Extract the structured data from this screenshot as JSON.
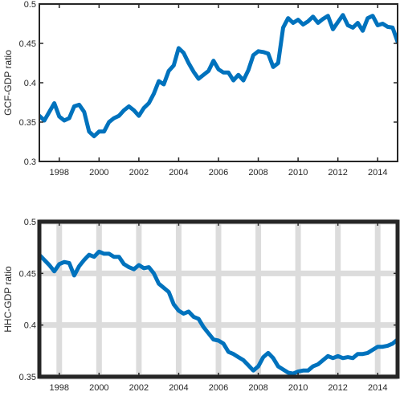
{
  "chart_data": [
    {
      "type": "line",
      "title": "",
      "xlabel": "",
      "ylabel": "GCF-GDP ratio",
      "xlim": [
        1997,
        2015
      ],
      "ylim": [
        0.3,
        0.5
      ],
      "grid": false,
      "yticks": [
        0.3,
        0.35,
        0.4,
        0.45,
        0.5
      ],
      "ytick_labels": [
        "0.3",
        "0.35",
        "0.4",
        "0.45",
        "0.5"
      ],
      "xticks": [
        1998,
        2000,
        2002,
        2004,
        2006,
        2008,
        2010,
        2012,
        2014
      ],
      "xtick_labels": [
        "1998",
        "2000",
        "2002",
        "2004",
        "2006",
        "2008",
        "2010",
        "2012",
        "2014"
      ],
      "color": "#0072BD",
      "series": [
        {
          "x": [
            1997.0,
            1997.25,
            1997.5,
            1997.75,
            1998.0,
            1998.25,
            1998.5,
            1998.75,
            1999.0,
            1999.25,
            1999.5,
            1999.75,
            2000.0,
            2000.25,
            2000.5,
            2000.75,
            2001.0,
            2001.25,
            2001.5,
            2001.75,
            2002.0,
            2002.25,
            2002.5,
            2002.75,
            2003.0,
            2003.25,
            2003.5,
            2003.75,
            2004.0,
            2004.25,
            2004.5,
            2004.75,
            2005.0,
            2005.25,
            2005.5,
            2005.75,
            2006.0,
            2006.25,
            2006.5,
            2006.75,
            2007.0,
            2007.25,
            2007.5,
            2007.75,
            2008.0,
            2008.25,
            2008.5,
            2008.75,
            2009.0,
            2009.25,
            2009.5,
            2009.75,
            2010.0,
            2010.25,
            2010.5,
            2010.75,
            2011.0,
            2011.25,
            2011.5,
            2011.75,
            2012.0,
            2012.25,
            2012.5,
            2012.75,
            2013.0,
            2013.25,
            2013.5,
            2013.75,
            2014.0,
            2014.25,
            2014.5,
            2014.75,
            2015.0
          ],
          "values": [
            0.358,
            0.352,
            0.363,
            0.374,
            0.357,
            0.352,
            0.355,
            0.37,
            0.372,
            0.363,
            0.338,
            0.332,
            0.338,
            0.338,
            0.35,
            0.355,
            0.358,
            0.365,
            0.37,
            0.365,
            0.358,
            0.368,
            0.374,
            0.386,
            0.402,
            0.398,
            0.415,
            0.422,
            0.444,
            0.438,
            0.425,
            0.414,
            0.405,
            0.41,
            0.415,
            0.428,
            0.417,
            0.413,
            0.413,
            0.403,
            0.41,
            0.403,
            0.416,
            0.435,
            0.44,
            0.439,
            0.437,
            0.42,
            0.425,
            0.47,
            0.482,
            0.476,
            0.48,
            0.474,
            0.478,
            0.484,
            0.476,
            0.481,
            0.485,
            0.468,
            0.477,
            0.486,
            0.473,
            0.47,
            0.476,
            0.466,
            0.482,
            0.485,
            0.473,
            0.475,
            0.471,
            0.47,
            0.452
          ]
        }
      ]
    },
    {
      "type": "line",
      "title": "",
      "xlabel": "",
      "ylabel": "HHC-GDP ratio",
      "xlim": [
        1997,
        2015
      ],
      "ylim": [
        0.35,
        0.5
      ],
      "grid": true,
      "yticks": [
        0.35,
        0.4,
        0.45,
        0.5
      ],
      "ytick_labels": [
        "0.35",
        "0.4",
        "0.45",
        "0.5"
      ],
      "xticks": [
        1998,
        2000,
        2002,
        2004,
        2006,
        2008,
        2010,
        2012,
        2014
      ],
      "xtick_labels": [
        "1998",
        "2000",
        "2002",
        "2004",
        "2006",
        "2008",
        "2010",
        "2012",
        "2014"
      ],
      "color": "#0072BD",
      "series": [
        {
          "x": [
            1997.0,
            1997.25,
            1997.5,
            1997.75,
            1998.0,
            1998.25,
            1998.5,
            1998.75,
            1999.0,
            1999.25,
            1999.5,
            1999.75,
            2000.0,
            2000.25,
            2000.5,
            2000.75,
            2001.0,
            2001.25,
            2001.5,
            2001.75,
            2002.0,
            2002.25,
            2002.5,
            2002.75,
            2003.0,
            2003.25,
            2003.5,
            2003.75,
            2004.0,
            2004.25,
            2004.5,
            2004.75,
            2005.0,
            2005.25,
            2005.5,
            2005.75,
            2006.0,
            2006.25,
            2006.5,
            2006.75,
            2007.0,
            2007.25,
            2007.5,
            2007.75,
            2008.0,
            2008.25,
            2008.5,
            2008.75,
            2009.0,
            2009.25,
            2009.5,
            2009.75,
            2010.0,
            2010.25,
            2010.5,
            2010.75,
            2011.0,
            2011.25,
            2011.5,
            2011.75,
            2012.0,
            2012.25,
            2012.5,
            2012.75,
            2013.0,
            2013.25,
            2013.5,
            2013.75,
            2014.0,
            2014.25,
            2014.5,
            2014.75,
            2015.0
          ],
          "values": [
            0.468,
            0.463,
            0.458,
            0.452,
            0.459,
            0.461,
            0.46,
            0.448,
            0.457,
            0.463,
            0.468,
            0.466,
            0.471,
            0.469,
            0.469,
            0.466,
            0.466,
            0.459,
            0.456,
            0.454,
            0.458,
            0.455,
            0.456,
            0.45,
            0.44,
            0.436,
            0.432,
            0.42,
            0.414,
            0.411,
            0.413,
            0.408,
            0.406,
            0.398,
            0.392,
            0.386,
            0.385,
            0.382,
            0.374,
            0.372,
            0.369,
            0.366,
            0.361,
            0.356,
            0.36,
            0.369,
            0.373,
            0.368,
            0.36,
            0.357,
            0.354,
            0.353,
            0.355,
            0.356,
            0.356,
            0.36,
            0.362,
            0.366,
            0.37,
            0.368,
            0.37,
            0.368,
            0.369,
            0.368,
            0.372,
            0.372,
            0.373,
            0.376,
            0.379,
            0.379,
            0.38,
            0.382,
            0.386
          ]
        }
      ]
    }
  ]
}
